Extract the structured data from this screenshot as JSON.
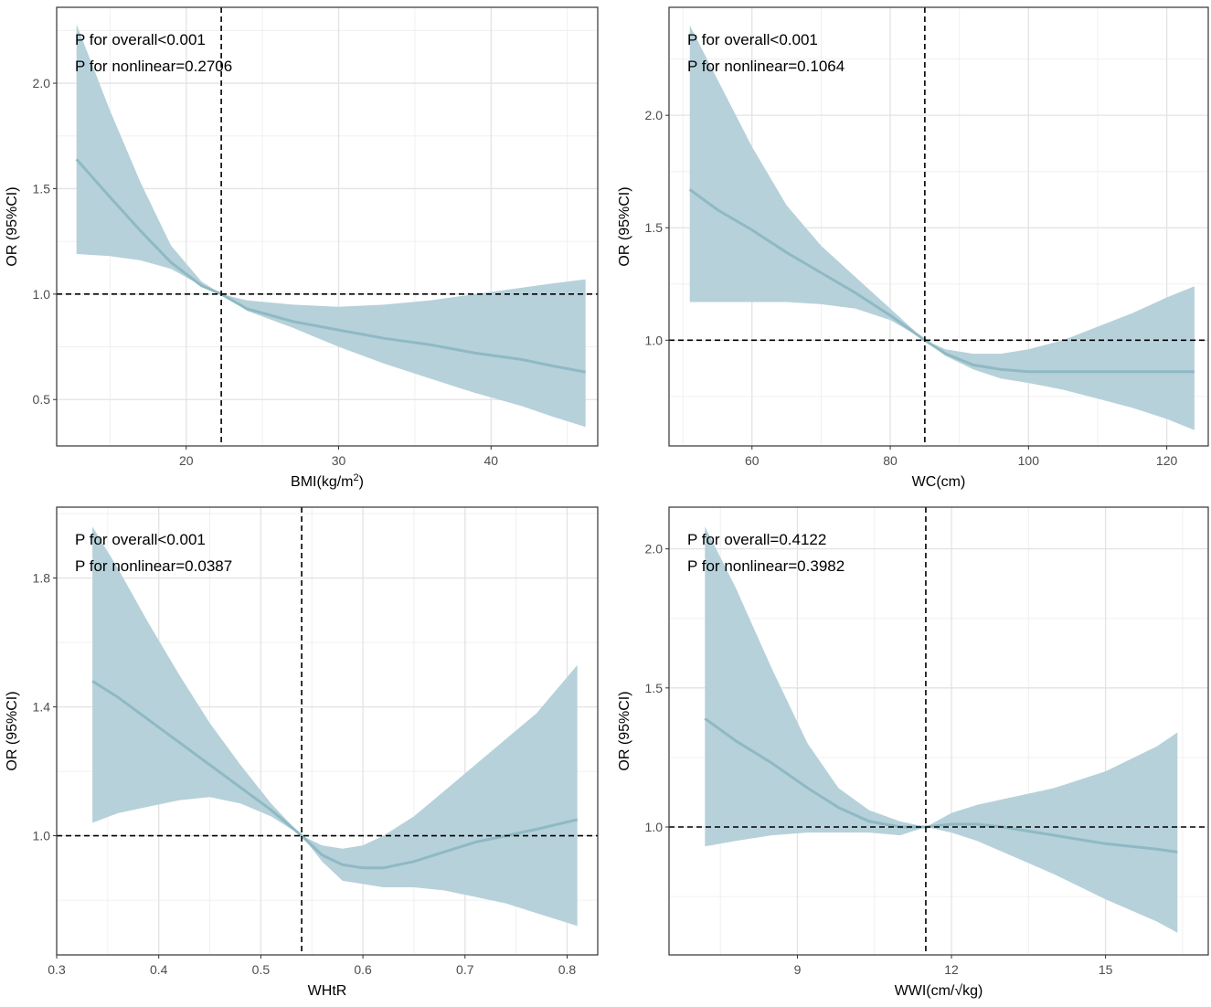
{
  "figure": {
    "ylabel": "OR (95%CI)"
  },
  "chart_data": [
    {
      "type": "line",
      "title": "",
      "xlabel": "BMI(kg/m2)",
      "ylabel": "OR (95%CI)",
      "xlim": [
        11.5,
        47
      ],
      "ylim": [
        0.28,
        2.36
      ],
      "xticks": [
        20,
        30,
        40
      ],
      "yticks": [
        0.5,
        1.0,
        1.5,
        2.0
      ],
      "ref_x": 22.3,
      "ref_y": 1.0,
      "annotations": [
        "P for overall<0.001",
        "P for nonlinear=0.2706"
      ],
      "series": [
        {
          "name": "OR",
          "x": [
            12.8,
            15,
            17,
            19,
            21,
            22.3,
            24,
            27,
            30,
            33,
            36,
            39,
            42,
            44,
            46.2
          ],
          "values": [
            1.64,
            1.46,
            1.3,
            1.15,
            1.04,
            1.0,
            0.93,
            0.87,
            0.83,
            0.79,
            0.76,
            0.72,
            0.69,
            0.66,
            0.63
          ]
        },
        {
          "name": "95% CI lower",
          "x": [
            12.8,
            15,
            17,
            19,
            21,
            22.3,
            24,
            27,
            30,
            33,
            36,
            39,
            42,
            44,
            46.2
          ],
          "values": [
            1.19,
            1.18,
            1.16,
            1.12,
            1.04,
            1.0,
            0.92,
            0.84,
            0.75,
            0.67,
            0.6,
            0.53,
            0.47,
            0.42,
            0.37
          ]
        },
        {
          "name": "95% CI upper",
          "x": [
            12.8,
            15,
            17,
            19,
            21,
            22.3,
            24,
            27,
            30,
            33,
            36,
            39,
            42,
            44,
            46.2
          ],
          "values": [
            2.28,
            1.87,
            1.53,
            1.23,
            1.06,
            1.0,
            0.97,
            0.95,
            0.94,
            0.95,
            0.97,
            1.0,
            1.03,
            1.05,
            1.07
          ]
        }
      ]
    },
    {
      "type": "line",
      "title": "",
      "xlabel": "WC(cm)",
      "ylabel": "OR (95%CI)",
      "xlim": [
        48,
        126
      ],
      "ylim": [
        0.53,
        2.48
      ],
      "xticks": [
        60,
        80,
        100,
        120
      ],
      "yticks": [
        1.0,
        1.5,
        2.0
      ],
      "ref_x": 85,
      "ref_y": 1.0,
      "annotations": [
        "P for overall<0.001",
        "P for nonlinear=0.1064"
      ],
      "series": [
        {
          "name": "OR",
          "x": [
            51,
            55,
            60,
            65,
            70,
            75,
            80,
            85,
            88,
            92,
            96,
            100,
            105,
            110,
            115,
            120,
            124
          ],
          "values": [
            1.67,
            1.58,
            1.49,
            1.39,
            1.3,
            1.21,
            1.11,
            1.0,
            0.94,
            0.89,
            0.87,
            0.86,
            0.86,
            0.86,
            0.86,
            0.86,
            0.86
          ]
        },
        {
          "name": "95% CI lower",
          "x": [
            51,
            55,
            60,
            65,
            70,
            75,
            80,
            85,
            88,
            92,
            96,
            100,
            105,
            110,
            115,
            120,
            124
          ],
          "values": [
            1.17,
            1.17,
            1.17,
            1.17,
            1.16,
            1.14,
            1.09,
            1.0,
            0.93,
            0.87,
            0.83,
            0.81,
            0.78,
            0.74,
            0.7,
            0.65,
            0.6
          ]
        },
        {
          "name": "95% CI upper",
          "x": [
            51,
            55,
            60,
            65,
            70,
            75,
            80,
            85,
            88,
            92,
            96,
            100,
            105,
            110,
            115,
            120,
            124
          ],
          "values": [
            2.4,
            2.16,
            1.86,
            1.6,
            1.42,
            1.28,
            1.14,
            1.0,
            0.96,
            0.94,
            0.94,
            0.96,
            1.0,
            1.06,
            1.12,
            1.19,
            1.24
          ]
        }
      ]
    },
    {
      "type": "line",
      "title": "",
      "xlabel": "WHtR",
      "ylabel": "OR (95%CI)",
      "xlim": [
        0.3,
        0.83
      ],
      "ylim": [
        0.63,
        2.02
      ],
      "xticks": [
        0.3,
        0.4,
        0.5,
        0.6,
        0.7,
        0.8
      ],
      "yticks": [
        1.0,
        1.4,
        1.8
      ],
      "ref_x": 0.54,
      "ref_y": 1.0,
      "annotations": [
        "P for overall<0.001",
        "P for nonlinear=0.0387"
      ],
      "series": [
        {
          "name": "OR",
          "x": [
            0.335,
            0.36,
            0.39,
            0.42,
            0.45,
            0.48,
            0.51,
            0.54,
            0.56,
            0.58,
            0.6,
            0.62,
            0.65,
            0.68,
            0.71,
            0.74,
            0.77,
            0.81
          ],
          "values": [
            1.48,
            1.43,
            1.36,
            1.29,
            1.22,
            1.15,
            1.08,
            1.0,
            0.94,
            0.91,
            0.9,
            0.9,
            0.92,
            0.95,
            0.98,
            1.0,
            1.02,
            1.05
          ]
        },
        {
          "name": "95% CI lower",
          "x": [
            0.335,
            0.36,
            0.39,
            0.42,
            0.45,
            0.48,
            0.51,
            0.54,
            0.56,
            0.58,
            0.6,
            0.62,
            0.65,
            0.68,
            0.71,
            0.74,
            0.77,
            0.81
          ],
          "values": [
            1.04,
            1.07,
            1.09,
            1.11,
            1.12,
            1.1,
            1.06,
            1.0,
            0.92,
            0.86,
            0.85,
            0.84,
            0.84,
            0.83,
            0.81,
            0.79,
            0.76,
            0.72
          ]
        },
        {
          "name": "95% CI upper",
          "x": [
            0.335,
            0.36,
            0.39,
            0.42,
            0.45,
            0.48,
            0.51,
            0.54,
            0.56,
            0.58,
            0.6,
            0.62,
            0.65,
            0.68,
            0.71,
            0.74,
            0.77,
            0.81
          ],
          "values": [
            1.96,
            1.83,
            1.66,
            1.5,
            1.35,
            1.22,
            1.1,
            1.0,
            0.97,
            0.96,
            0.97,
            1.0,
            1.06,
            1.14,
            1.22,
            1.3,
            1.38,
            1.53
          ]
        }
      ]
    },
    {
      "type": "line",
      "title": "",
      "xlabel": "WWI(cm/√kg)",
      "ylabel": "OR (95%CI)",
      "xlim": [
        6.5,
        17
      ],
      "ylim": [
        0.54,
        2.15
      ],
      "xticks": [
        9,
        12,
        15
      ],
      "yticks": [
        1.0,
        1.5,
        2.0
      ],
      "ref_x": 11.5,
      "ref_y": 1.0,
      "annotations": [
        "P for overall=0.4122",
        "P for nonlinear=0.3982"
      ],
      "series": [
        {
          "name": "OR",
          "x": [
            7.2,
            7.8,
            8.5,
            9.2,
            9.8,
            10.4,
            11,
            11.5,
            12,
            12.5,
            13,
            14,
            15,
            16,
            16.4
          ],
          "values": [
            1.39,
            1.31,
            1.23,
            1.14,
            1.07,
            1.02,
            1.0,
            1.0,
            1.01,
            1.01,
            1.0,
            0.97,
            0.94,
            0.92,
            0.91
          ]
        },
        {
          "name": "95% CI lower",
          "x": [
            7.2,
            7.8,
            8.5,
            9.2,
            9.8,
            10.4,
            11,
            11.5,
            12,
            12.5,
            13,
            14,
            15,
            16,
            16.4
          ],
          "values": [
            0.93,
            0.95,
            0.97,
            0.98,
            0.98,
            0.98,
            0.97,
            1.0,
            0.98,
            0.95,
            0.91,
            0.83,
            0.74,
            0.66,
            0.62
          ]
        },
        {
          "name": "95% CI upper",
          "x": [
            7.2,
            7.8,
            8.5,
            9.2,
            9.8,
            10.4,
            11,
            11.5,
            12,
            12.5,
            13,
            14,
            15,
            16,
            16.4
          ],
          "values": [
            2.08,
            1.86,
            1.57,
            1.3,
            1.14,
            1.06,
            1.02,
            1.0,
            1.05,
            1.08,
            1.1,
            1.14,
            1.2,
            1.29,
            1.34
          ]
        }
      ]
    }
  ]
}
